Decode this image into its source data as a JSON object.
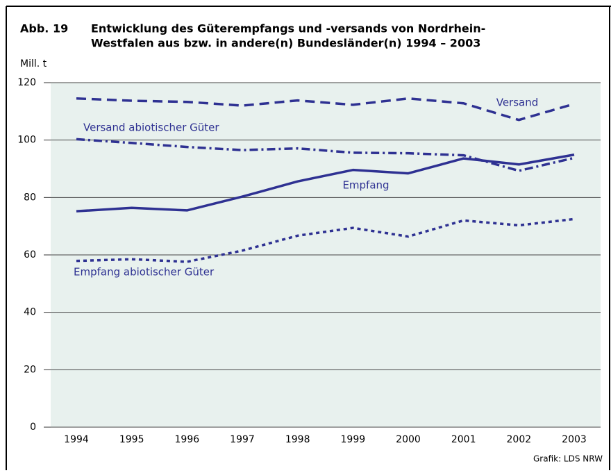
{
  "chart_data": {
    "type": "line",
    "figure_label": "Abb. 19",
    "title_lines": [
      "Entwicklung des Güterempfangs und -versands von Nordrhein-",
      "Westfalen aus bzw. in andere(n) Bundesländer(n) 1994 – 2003"
    ],
    "y_label": "Mill. t",
    "source": "Grafik: LDS NRW",
    "categories": [
      "1994",
      "1995",
      "1996",
      "1997",
      "1998",
      "1999",
      "2000",
      "2001",
      "2002",
      "2003"
    ],
    "series": [
      {
        "name": "Versand",
        "color": "#2e3192",
        "dash": "long",
        "values": [
          114.5,
          113.7,
          113.3,
          112,
          113.8,
          112.3,
          114.5,
          112.8,
          107,
          112.6
        ]
      },
      {
        "name": "Versand abiotischer Güter",
        "color": "#2e3192",
        "dash": "dashdot",
        "values": [
          100.3,
          99,
          97.6,
          96.5,
          97.1,
          95.6,
          95.4,
          94.7,
          89.3,
          93.8
        ]
      },
      {
        "name": "Empfang",
        "color": "#2e3192",
        "dash": "solid",
        "values": [
          75.2,
          76.4,
          75.5,
          80.3,
          85.6,
          89.6,
          88.4,
          93.6,
          91.5,
          94.9
        ]
      },
      {
        "name": "Empfang abiotischer Güter",
        "color": "#2e3192",
        "dash": "dotted",
        "values": [
          57.9,
          58.5,
          57.6,
          61.5,
          66.7,
          69.4,
          66.4,
          72,
          70.3,
          72.5
        ]
      }
    ],
    "ylim": [
      0,
      120
    ],
    "yticks": [
      0,
      20,
      40,
      60,
      80,
      100,
      120
    ],
    "grid": true,
    "background": "#e8f1ee"
  }
}
